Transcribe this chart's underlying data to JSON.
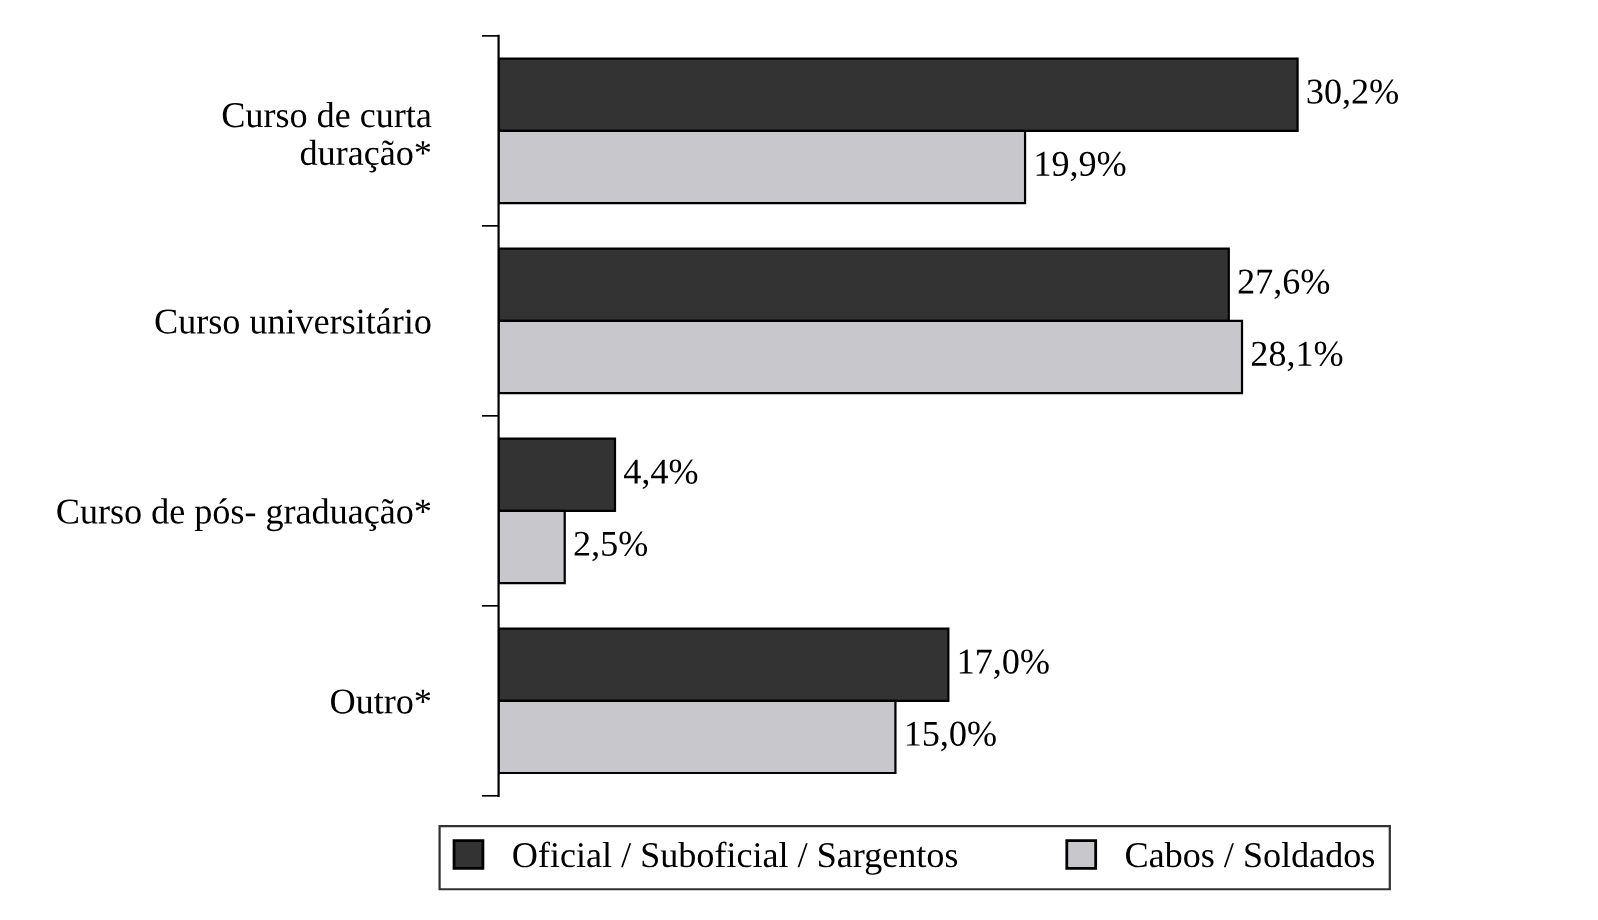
{
  "chart_data": {
    "type": "bar",
    "orientation": "horizontal",
    "categories": [
      "Curso de curta\nduração*",
      "Curso universitário",
      "Curso de pós- graduação*",
      "Outro*"
    ],
    "series": [
      {
        "name": "Oficial / Suboficial / Sargentos",
        "color": "#333333",
        "values": [
          30.2,
          27.6,
          4.4,
          17.0
        ],
        "value_labels": [
          "30,2%",
          "27,6%",
          "4,4%",
          "17,0%"
        ]
      },
      {
        "name": "Cabos / Soldados",
        "color": "#c8c8cc",
        "values": [
          19.9,
          28.1,
          2.5,
          15.0
        ],
        "value_labels": [
          "19,9%",
          "28,1%",
          "2,5%",
          "15,0%"
        ]
      }
    ],
    "legend": "bottom",
    "grid": false
  }
}
